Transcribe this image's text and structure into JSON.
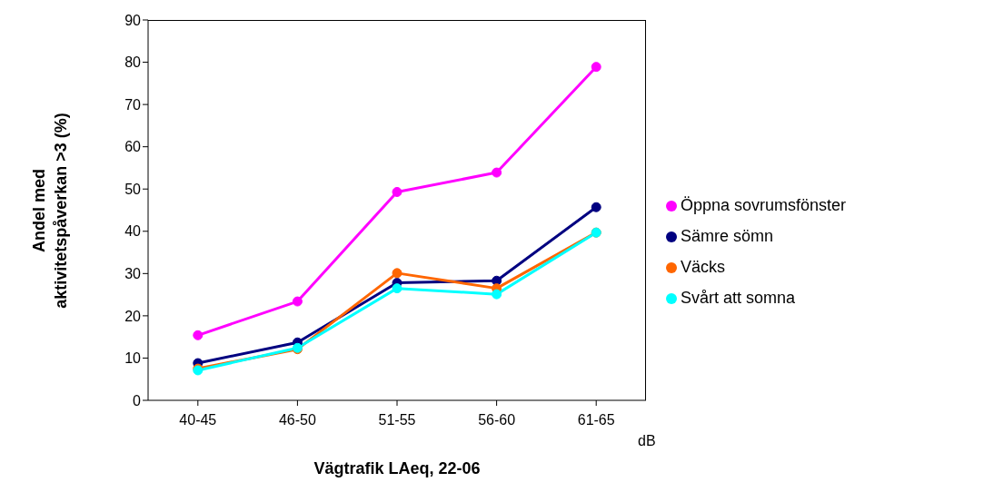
{
  "chart_data": {
    "type": "line",
    "xlabel": "Vägtrafik LAeq, 22-06",
    "ylabel": "Andel med\naktivitetspåverkan >3 (%)",
    "categories": [
      "40-45",
      "46-50",
      "51-55",
      "56-60",
      "61-65"
    ],
    "series": [
      {
        "name": "Öppna sovrumsfönster",
        "color": "#ff00ff",
        "values": [
          15.4,
          23.4,
          49.3,
          53.9,
          78.9
        ]
      },
      {
        "name": "Sämre sömn",
        "color": "#000080",
        "values": [
          8.8,
          13.7,
          27.8,
          28.3,
          45.7
        ]
      },
      {
        "name": "Väcks",
        "color": "#ff6600",
        "values": [
          7.5,
          12.1,
          30.1,
          26.5,
          39.7
        ]
      },
      {
        "name": "Svårt att somna",
        "color": "#00ffff",
        "values": [
          7.1,
          12.4,
          26.5,
          25.1,
          39.7
        ]
      }
    ],
    "ylim": [
      0,
      90
    ],
    "yticks": [
      0,
      10,
      20,
      30,
      40,
      50,
      60,
      70,
      80,
      90
    ],
    "grid": false,
    "legend": "right",
    "marker": "circle",
    "line_style": "solid",
    "annotations": [
      "dB"
    ]
  }
}
